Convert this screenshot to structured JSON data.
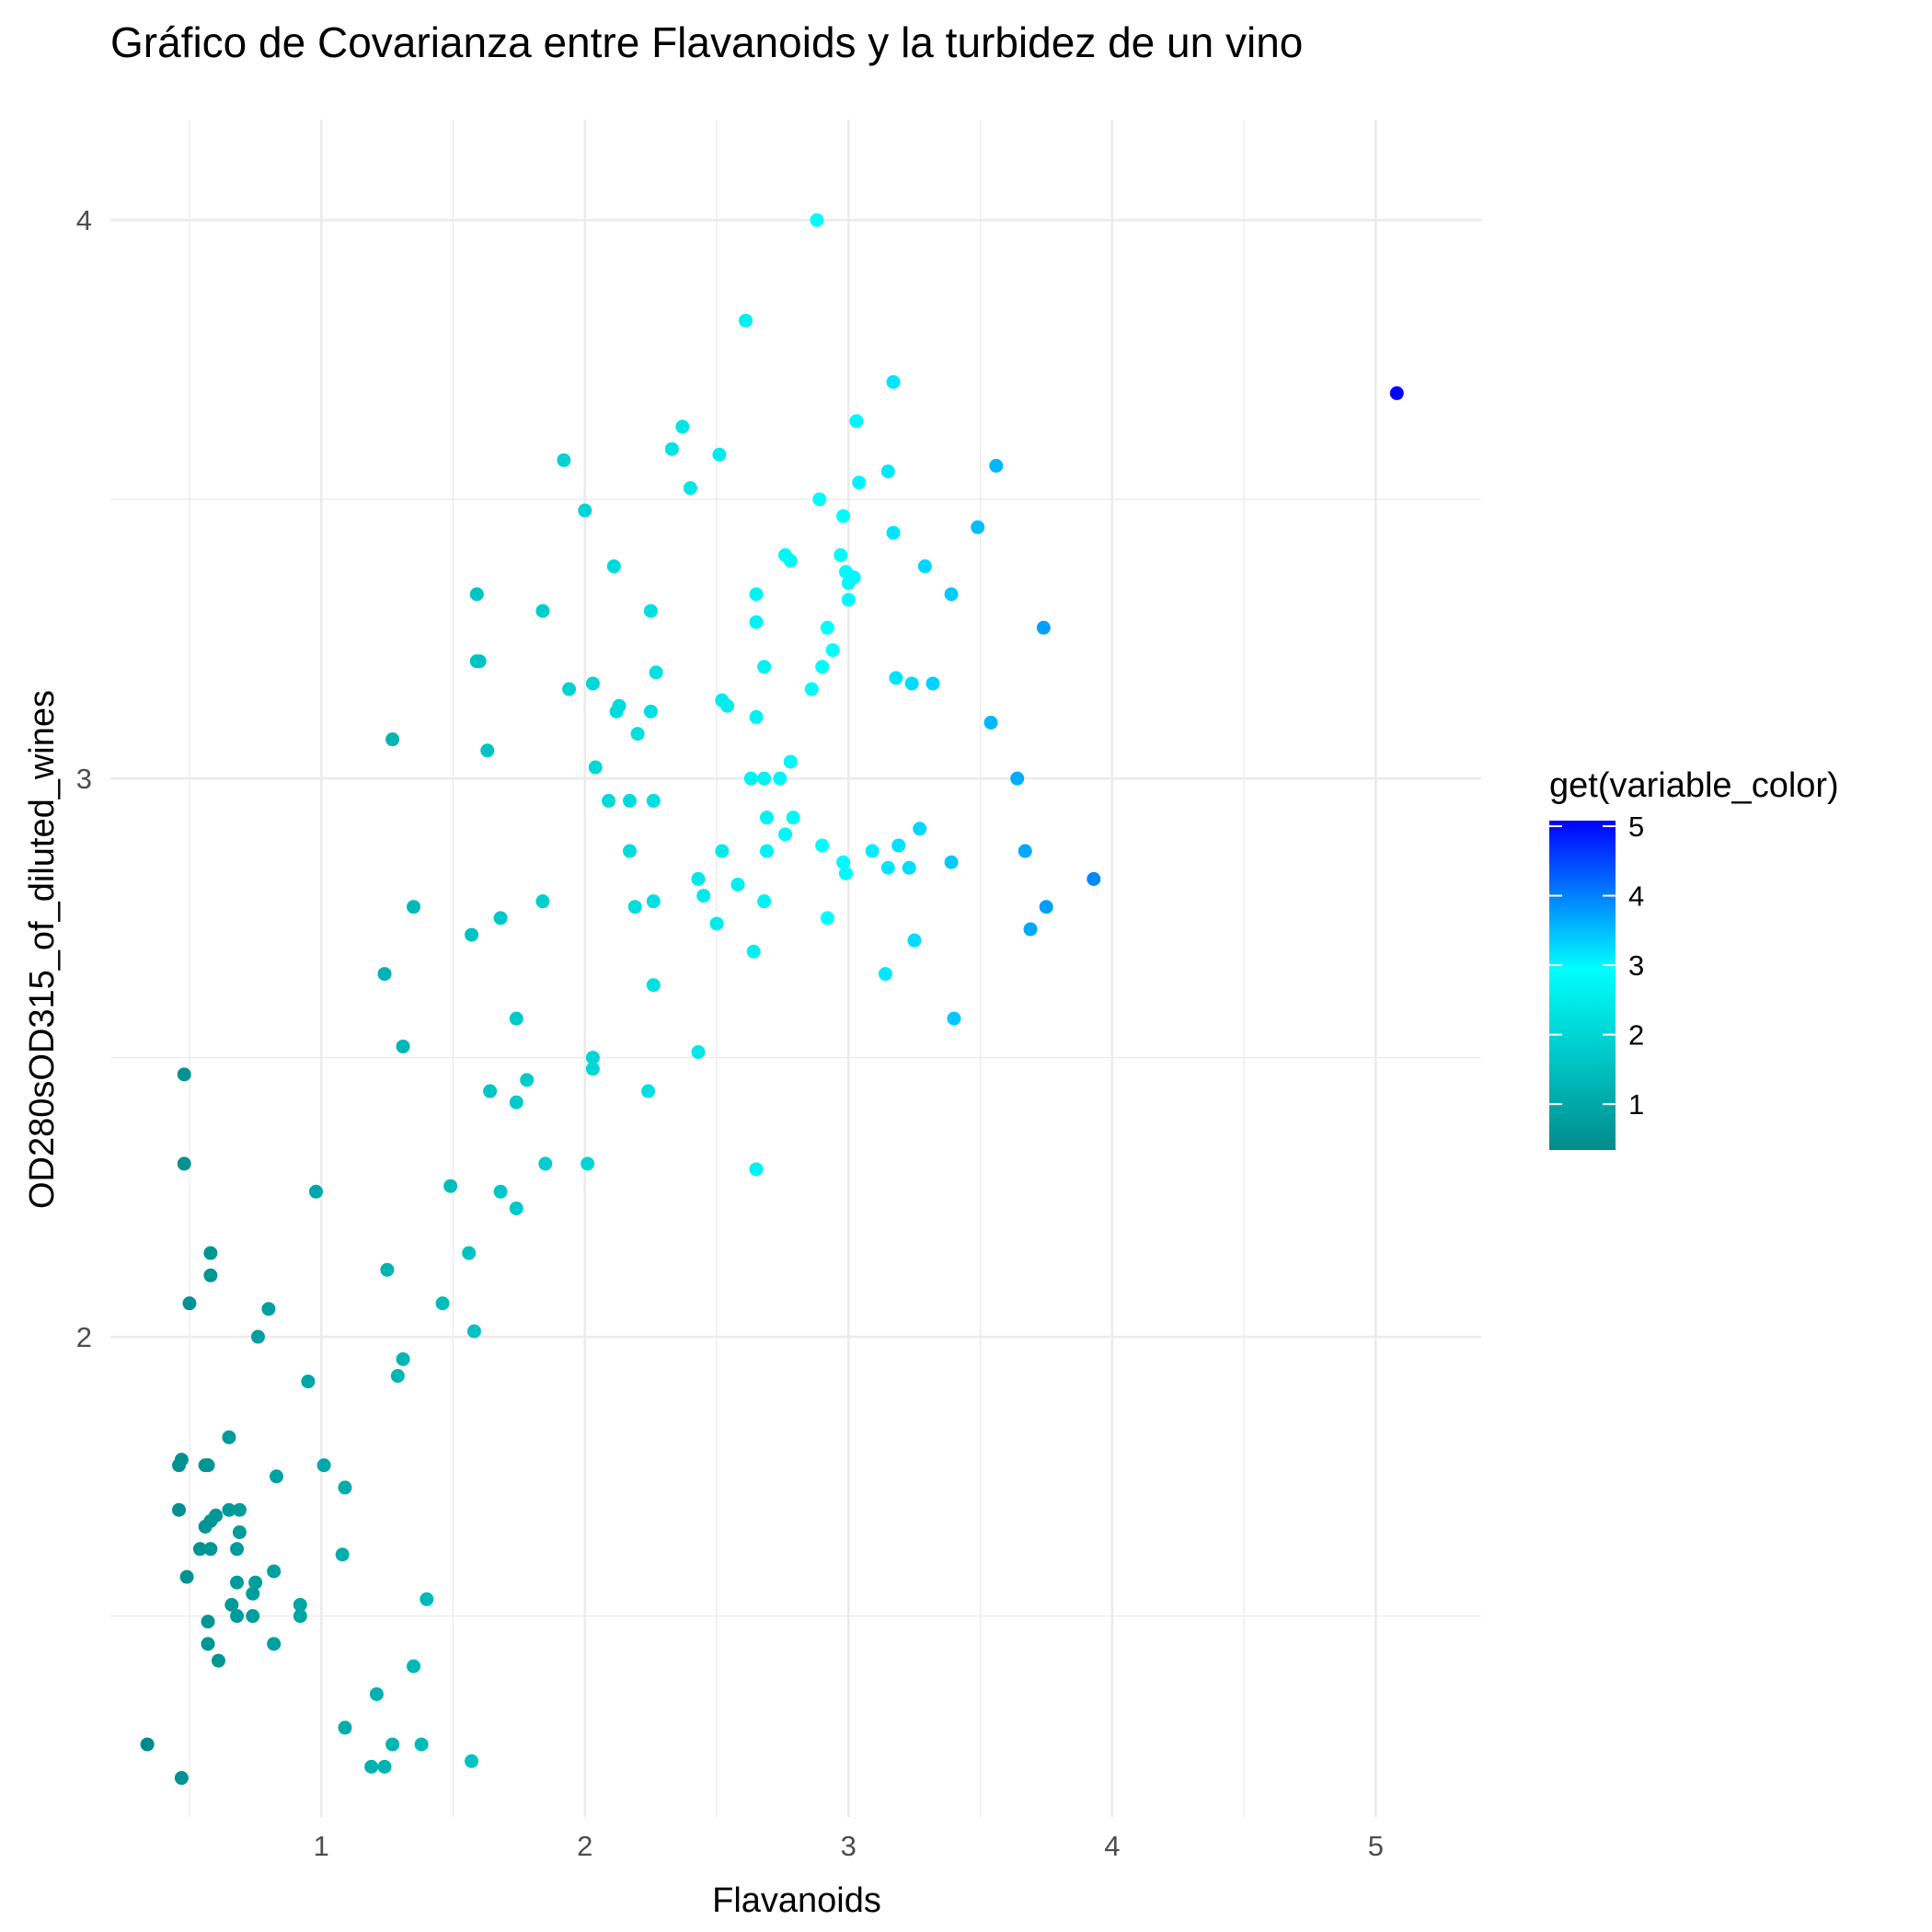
{
  "chart_data": {
    "type": "scatter",
    "title": "Gráfico de Covarianza entre Flavanoids y la turbidez de un vino",
    "xlabel": "Flavanoids",
    "ylabel": "OD280sOD315_of_diluted_wines",
    "xlim": [
      0.2,
      5.4
    ],
    "ylim": [
      1.14,
      4.18
    ],
    "x_ticks": [
      1,
      2,
      3,
      4,
      5
    ],
    "x_tick_labels": [
      "1",
      "2",
      "3",
      "4",
      "5"
    ],
    "y_ticks": [
      2,
      3,
      4
    ],
    "y_tick_labels": [
      "2",
      "3",
      "4"
    ],
    "grid": true,
    "legend": {
      "title": "get(variable_color)",
      "placement": "right",
      "type": "colorbar",
      "range": [
        0.34,
        5.08
      ],
      "ticks": [
        1,
        2,
        3,
        4,
        5
      ],
      "tick_labels": [
        "1",
        "2",
        "3",
        "4",
        "5"
      ],
      "colors": [
        "#008B8B",
        "#00FFFF",
        "#0000FF"
      ]
    },
    "points": [
      [
        2.88,
        4.0
      ],
      [
        2.61,
        3.82
      ],
      [
        5.08,
        3.69
      ],
      [
        3.17,
        3.71
      ],
      [
        2.37,
        3.63
      ],
      [
        3.03,
        3.64
      ],
      [
        2.33,
        3.59
      ],
      [
        2.51,
        3.58
      ],
      [
        1.92,
        3.57
      ],
      [
        3.56,
        3.56
      ],
      [
        3.15,
        3.55
      ],
      [
        2.4,
        3.52
      ],
      [
        3.04,
        3.53
      ],
      [
        2.89,
        3.5
      ],
      [
        2.0,
        3.48
      ],
      [
        2.98,
        3.47
      ],
      [
        3.49,
        3.45
      ],
      [
        3.17,
        3.44
      ],
      [
        2.76,
        3.4
      ],
      [
        2.78,
        3.39
      ],
      [
        2.97,
        3.4
      ],
      [
        2.11,
        3.38
      ],
      [
        3.29,
        3.38
      ],
      [
        2.99,
        3.37
      ],
      [
        3.02,
        3.36
      ],
      [
        3.0,
        3.35
      ],
      [
        1.59,
        3.33
      ],
      [
        2.65,
        3.33
      ],
      [
        3.39,
        3.33
      ],
      [
        1.84,
        3.3
      ],
      [
        2.25,
        3.3
      ],
      [
        3.0,
        3.32
      ],
      [
        2.65,
        3.28
      ],
      [
        2.92,
        3.27
      ],
      [
        3.74,
        3.27
      ],
      [
        2.94,
        3.23
      ],
      [
        1.59,
        3.21
      ],
      [
        1.6,
        3.21
      ],
      [
        2.68,
        3.2
      ],
      [
        2.9,
        3.2
      ],
      [
        2.27,
        3.19
      ],
      [
        3.18,
        3.18
      ],
      [
        3.24,
        3.17
      ],
      [
        3.32,
        3.17
      ],
      [
        1.94,
        3.16
      ],
      [
        2.03,
        3.17
      ],
      [
        2.86,
        3.16
      ],
      [
        2.52,
        3.14
      ],
      [
        2.54,
        3.13
      ],
      [
        2.13,
        3.13
      ],
      [
        2.12,
        3.12
      ],
      [
        2.25,
        3.12
      ],
      [
        2.65,
        3.11
      ],
      [
        3.54,
        3.1
      ],
      [
        2.2,
        3.08
      ],
      [
        1.27,
        3.07
      ],
      [
        1.63,
        3.05
      ],
      [
        2.78,
        3.03
      ],
      [
        2.04,
        3.02
      ],
      [
        2.63,
        3.0
      ],
      [
        2.68,
        3.0
      ],
      [
        2.74,
        3.0
      ],
      [
        3.64,
        3.0
      ],
      [
        2.09,
        2.96
      ],
      [
        2.17,
        2.96
      ],
      [
        2.26,
        2.96
      ],
      [
        2.69,
        2.93
      ],
      [
        2.79,
        2.93
      ],
      [
        2.76,
        2.9
      ],
      [
        3.27,
        2.91
      ],
      [
        2.9,
        2.88
      ],
      [
        2.17,
        2.87
      ],
      [
        2.52,
        2.87
      ],
      [
        2.69,
        2.87
      ],
      [
        3.09,
        2.87
      ],
      [
        3.19,
        2.88
      ],
      [
        3.67,
        2.87
      ],
      [
        2.98,
        2.85
      ],
      [
        3.15,
        2.84
      ],
      [
        3.23,
        2.84
      ],
      [
        3.39,
        2.85
      ],
      [
        2.99,
        2.83
      ],
      [
        3.93,
        2.82
      ],
      [
        2.43,
        2.82
      ],
      [
        2.58,
        2.81
      ],
      [
        2.45,
        2.79
      ],
      [
        2.26,
        2.78
      ],
      [
        1.84,
        2.78
      ],
      [
        2.68,
        2.78
      ],
      [
        1.35,
        2.77
      ],
      [
        2.19,
        2.77
      ],
      [
        3.75,
        2.77
      ],
      [
        1.68,
        2.75
      ],
      [
        2.92,
        2.75
      ],
      [
        2.5,
        2.74
      ],
      [
        1.57,
        2.72
      ],
      [
        3.69,
        2.73
      ],
      [
        3.25,
        2.71
      ],
      [
        2.64,
        2.69
      ],
      [
        1.24,
        2.65
      ],
      [
        3.14,
        2.65
      ],
      [
        2.26,
        2.63
      ],
      [
        1.74,
        2.57
      ],
      [
        3.4,
        2.57
      ],
      [
        1.31,
        2.52
      ],
      [
        2.43,
        2.51
      ],
      [
        2.03,
        2.5
      ],
      [
        2.03,
        2.48
      ],
      [
        0.48,
        2.47
      ],
      [
        1.78,
        2.46
      ],
      [
        1.64,
        2.44
      ],
      [
        2.24,
        2.44
      ],
      [
        1.74,
        2.42
      ],
      [
        0.48,
        2.31
      ],
      [
        1.85,
        2.31
      ],
      [
        2.01,
        2.31
      ],
      [
        2.65,
        2.3
      ],
      [
        1.49,
        2.27
      ],
      [
        0.98,
        2.26
      ],
      [
        1.68,
        2.26
      ],
      [
        1.74,
        2.23
      ],
      [
        0.58,
        2.15
      ],
      [
        1.56,
        2.15
      ],
      [
        0.58,
        2.11
      ],
      [
        1.25,
        2.12
      ],
      [
        0.5,
        2.06
      ],
      [
        0.8,
        2.05
      ],
      [
        1.46,
        2.06
      ],
      [
        1.58,
        2.01
      ],
      [
        0.76,
        2.0
      ],
      [
        1.31,
        1.96
      ],
      [
        1.29,
        1.93
      ],
      [
        0.95,
        1.92
      ],
      [
        0.65,
        1.82
      ],
      [
        0.47,
        1.78
      ],
      [
        0.46,
        1.77
      ],
      [
        0.56,
        1.77
      ],
      [
        0.57,
        1.77
      ],
      [
        1.01,
        1.77
      ],
      [
        0.83,
        1.75
      ],
      [
        1.09,
        1.73
      ],
      [
        0.46,
        1.69
      ],
      [
        0.65,
        1.69
      ],
      [
        0.69,
        1.69
      ],
      [
        0.6,
        1.68
      ],
      [
        0.58,
        1.67
      ],
      [
        0.56,
        1.66
      ],
      [
        0.69,
        1.65
      ],
      [
        0.54,
        1.62
      ],
      [
        0.58,
        1.62
      ],
      [
        0.68,
        1.62
      ],
      [
        1.08,
        1.61
      ],
      [
        0.82,
        1.58
      ],
      [
        0.49,
        1.57
      ],
      [
        0.68,
        1.56
      ],
      [
        0.75,
        1.56
      ],
      [
        0.74,
        1.54
      ],
      [
        1.4,
        1.53
      ],
      [
        0.66,
        1.52
      ],
      [
        0.92,
        1.52
      ],
      [
        0.68,
        1.5
      ],
      [
        0.74,
        1.5
      ],
      [
        0.92,
        1.5
      ],
      [
        0.57,
        1.49
      ],
      [
        0.57,
        1.45
      ],
      [
        0.82,
        1.45
      ],
      [
        0.61,
        1.42
      ],
      [
        1.35,
        1.41
      ],
      [
        1.21,
        1.36
      ],
      [
        1.09,
        1.3
      ],
      [
        0.34,
        1.27
      ],
      [
        1.27,
        1.27
      ],
      [
        1.38,
        1.27
      ],
      [
        1.57,
        1.24
      ],
      [
        1.19,
        1.23
      ],
      [
        1.24,
        1.23
      ],
      [
        0.47,
        1.21
      ]
    ]
  }
}
